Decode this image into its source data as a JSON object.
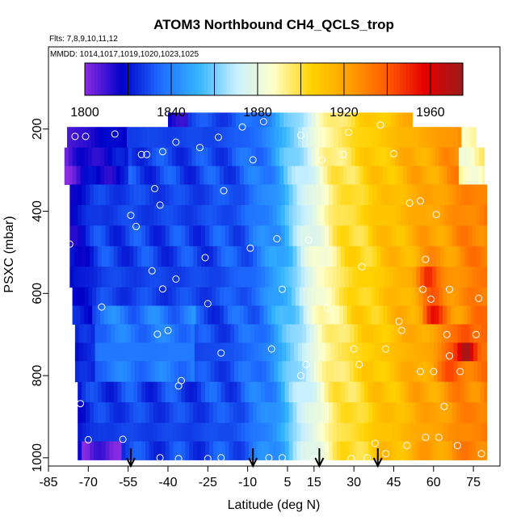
{
  "chart_data": {
    "type": "heatmap",
    "title": "ATOM3 Northbound CH4_QCLS_trop",
    "annotations": {
      "flights": "Flts: 7,8,9,10,11,12",
      "dates": "MMDD: 1014,1017,1019,1020,1023,1025"
    },
    "xlabel": "Latitude (deg N)",
    "ylabel": "PSXC (mbar)",
    "xlim": [
      -85,
      85
    ],
    "ylim": [
      1020,
      0
    ],
    "x_ticks": [
      -85,
      -70,
      -55,
      -40,
      -25,
      -10,
      5,
      15,
      30,
      45,
      60,
      75
    ],
    "x_tick_labels": [
      "-85",
      "-70",
      "-55",
      "-40",
      "-25",
      "-10",
      "5",
      "15",
      "30",
      "45",
      "60",
      "75"
    ],
    "y_ticks": [
      200,
      400,
      600,
      800,
      1000
    ],
    "y_tick_labels": [
      "200",
      "400",
      "600",
      "800",
      "1000"
    ],
    "colorbar": {
      "min": 1800,
      "max": 1975,
      "tick_values": [
        1800,
        1840,
        1880,
        1920,
        1960
      ],
      "tick_labels": [
        "1800",
        "1840",
        "1880",
        "1920",
        "1960"
      ],
      "colors": [
        "#8a2be2",
        "#0000c8",
        "#1e6cff",
        "#32b4ff",
        "#c8f0ff",
        "#ffffc8",
        "#ffd200",
        "#ffa000",
        "#ff5a00",
        "#e60000",
        "#9b1b1b"
      ]
    },
    "layers": [
      {
        "p": 170,
        "lat_range": [
          -40,
          52
        ]
      },
      {
        "p": 220,
        "lat_range": [
          -78,
          76
        ]
      },
      {
        "p": 270,
        "lat_range": [
          -79,
          79
        ]
      },
      {
        "p": 310,
        "lat_range": [
          -79,
          79
        ]
      },
      {
        "p": 360,
        "lat_range": [
          -77,
          80
        ]
      },
      {
        "p": 410,
        "lat_range": [
          -77,
          80
        ]
      },
      {
        "p": 460,
        "lat_range": [
          -77,
          80
        ]
      },
      {
        "p": 510,
        "lat_range": [
          -77,
          80
        ]
      },
      {
        "p": 560,
        "lat_range": [
          -77,
          80
        ]
      },
      {
        "p": 610,
        "lat_range": [
          -76,
          80
        ]
      },
      {
        "p": 650,
        "lat_range": [
          -76,
          80
        ]
      },
      {
        "p": 700,
        "lat_range": [
          -75,
          80
        ]
      },
      {
        "p": 740,
        "lat_range": [
          -75,
          80
        ]
      },
      {
        "p": 790,
        "lat_range": [
          -75,
          80
        ]
      },
      {
        "p": 840,
        "lat_range": [
          -74,
          80
        ]
      },
      {
        "p": 890,
        "lat_range": [
          -74,
          80
        ]
      },
      {
        "p": 940,
        "lat_range": [
          -74,
          80
        ]
      },
      {
        "p": 980,
        "lat_range": [
          -74,
          80
        ]
      }
    ],
    "hotspots": [
      {
        "lat": 72,
        "p": 735,
        "value": 1975
      },
      {
        "lat": 60,
        "p": 640,
        "value": 1958
      },
      {
        "lat": 66,
        "p": 770,
        "value": 1950
      },
      {
        "lat": 58,
        "p": 560,
        "value": 1950
      }
    ],
    "sample_points": [
      {
        "lat": -75,
        "p": 218
      },
      {
        "lat": -71,
        "p": 218
      },
      {
        "lat": -60,
        "p": 212
      },
      {
        "lat": -50,
        "p": 262
      },
      {
        "lat": -48,
        "p": 262
      },
      {
        "lat": -42,
        "p": 255
      },
      {
        "lat": -37,
        "p": 232
      },
      {
        "lat": -28,
        "p": 245
      },
      {
        "lat": -21,
        "p": 220
      },
      {
        "lat": -12,
        "p": 195
      },
      {
        "lat": -4,
        "p": 182
      },
      {
        "lat": 10,
        "p": 215
      },
      {
        "lat": 28,
        "p": 208
      },
      {
        "lat": 40,
        "p": 190
      },
      {
        "lat": -84,
        "p": 310
      },
      {
        "lat": -45,
        "p": 345
      },
      {
        "lat": -19,
        "p": 350
      },
      {
        "lat": -43,
        "p": 385
      },
      {
        "lat": -54,
        "p": 410
      },
      {
        "lat": -52,
        "p": 437
      },
      {
        "lat": -77,
        "p": 480
      },
      {
        "lat": -8,
        "p": 275
      },
      {
        "lat": 1,
        "p": 467
      },
      {
        "lat": -9,
        "p": 490
      },
      {
        "lat": 13,
        "p": 470
      },
      {
        "lat": -46,
        "p": 545
      },
      {
        "lat": -26,
        "p": 513
      },
      {
        "lat": -42,
        "p": 589
      },
      {
        "lat": -37,
        "p": 565
      },
      {
        "lat": 3,
        "p": 590
      },
      {
        "lat": 26,
        "p": 262
      },
      {
        "lat": 18,
        "p": 275
      },
      {
        "lat": 45,
        "p": 260
      },
      {
        "lat": 51,
        "p": 380
      },
      {
        "lat": 55,
        "p": 375
      },
      {
        "lat": 61,
        "p": 408
      },
      {
        "lat": 33,
        "p": 535
      },
      {
        "lat": 57,
        "p": 517
      },
      {
        "lat": 56,
        "p": 590
      },
      {
        "lat": 47,
        "p": 668
      },
      {
        "lat": 66,
        "p": 590
      },
      {
        "lat": 77,
        "p": 612
      },
      {
        "lat": -25,
        "p": 625
      },
      {
        "lat": -65,
        "p": 633
      },
      {
        "lat": -44,
        "p": 699
      },
      {
        "lat": -40,
        "p": 690
      },
      {
        "lat": -20,
        "p": 745
      },
      {
        "lat": -1,
        "p": 735
      },
      {
        "lat": 20,
        "p": 635
      },
      {
        "lat": 30,
        "p": 735
      },
      {
        "lat": 42,
        "p": 735
      },
      {
        "lat": 48,
        "p": 690
      },
      {
        "lat": 59,
        "p": 614
      },
      {
        "lat": 65,
        "p": 700
      },
      {
        "lat": 76,
        "p": 700
      },
      {
        "lat": 66,
        "p": 752
      },
      {
        "lat": -35,
        "p": 812
      },
      {
        "lat": -36,
        "p": 825
      },
      {
        "lat": -73,
        "p": 868
      },
      {
        "lat": 12,
        "p": 773
      },
      {
        "lat": 10,
        "p": 800
      },
      {
        "lat": 32,
        "p": 773
      },
      {
        "lat": 55,
        "p": 790
      },
      {
        "lat": 60,
        "p": 790
      },
      {
        "lat": 70,
        "p": 790
      },
      {
        "lat": 64,
        "p": 875
      },
      {
        "lat": 57,
        "p": 950
      },
      {
        "lat": 62,
        "p": 950
      },
      {
        "lat": 69,
        "p": 970
      },
      {
        "lat": 78,
        "p": 990
      },
      {
        "lat": 50,
        "p": 970
      },
      {
        "lat": 38,
        "p": 965
      },
      {
        "lat": -76,
        "p": 955
      },
      {
        "lat": -70,
        "p": 956
      },
      {
        "lat": -57,
        "p": 955
      },
      {
        "lat": -43,
        "p": 1000
      },
      {
        "lat": -36,
        "p": 1002
      },
      {
        "lat": -25,
        "p": 1002
      },
      {
        "lat": -20,
        "p": 1000
      },
      {
        "lat": -2,
        "p": 1000
      },
      {
        "lat": 3,
        "p": 1000
      },
      {
        "lat": 15,
        "p": 1002
      },
      {
        "lat": 29,
        "p": 1002
      },
      {
        "lat": 35,
        "p": 1000
      },
      {
        "lat": 42,
        "p": 990
      }
    ],
    "arrow_markers": [
      {
        "lat": -54,
        "label": "arrow"
      },
      {
        "lat": -8,
        "label": "arrow"
      },
      {
        "lat": 17,
        "label": "arrow"
      },
      {
        "lat": 39,
        "label": "arrow"
      }
    ]
  }
}
